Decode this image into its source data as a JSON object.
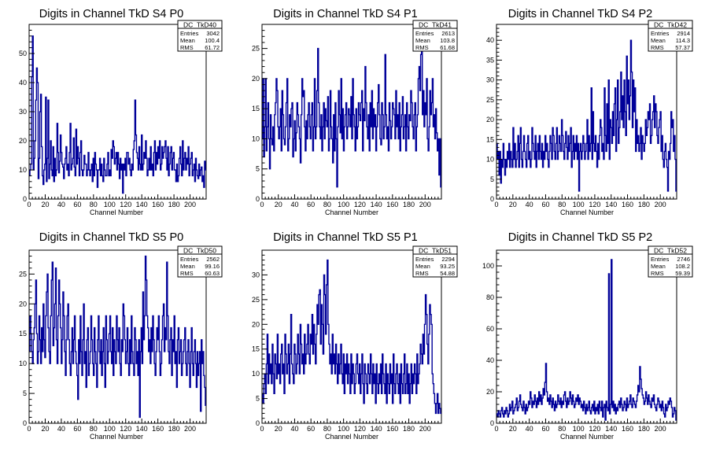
{
  "chart_data": [
    {
      "type": "histogram",
      "title": "Digits in Channel TkD S4 P0",
      "xlabel": "Channel Number",
      "ylabel": "",
      "xlim": [
        0,
        220
      ],
      "ylim": [
        0,
        60
      ],
      "xticks": [
        0,
        20,
        40,
        60,
        80,
        100,
        120,
        140,
        160,
        180,
        200
      ],
      "yticks": [
        0,
        10,
        20,
        30,
        40,
        50
      ],
      "grid": false,
      "line_color": "#000099",
      "stats": {
        "name": "DC_TkD40",
        "entries": "3042",
        "mean": "100.4",
        "rms": "61.72"
      },
      "values": [
        8,
        10,
        12,
        42,
        56,
        10,
        14,
        20,
        34,
        45,
        40,
        7,
        14,
        30,
        36,
        18,
        8,
        5,
        10,
        12,
        35,
        6,
        14,
        34,
        7,
        12,
        20,
        10,
        8,
        18,
        6,
        14,
        8,
        10,
        26,
        16,
        9,
        13,
        22,
        16,
        12,
        11,
        7,
        12,
        14,
        18,
        10,
        12,
        8,
        16,
        26,
        10,
        12,
        14,
        21,
        11,
        8,
        24,
        12,
        18,
        14,
        8,
        16,
        20,
        10,
        8,
        10,
        15,
        12,
        12,
        8,
        10,
        16,
        10,
        8,
        10,
        12,
        6,
        14,
        8,
        16,
        12,
        10,
        4,
        10,
        10,
        14,
        8,
        12,
        8,
        6,
        14,
        10,
        8,
        8,
        12,
        16,
        8,
        10,
        8,
        17,
        14,
        20,
        18,
        12,
        14,
        16,
        10,
        16,
        12,
        7,
        14,
        10,
        12,
        2,
        12,
        10,
        14,
        8,
        16,
        16,
        12,
        14,
        10,
        8,
        12,
        10,
        17,
        20,
        34,
        22,
        16,
        14,
        10,
        18,
        12,
        10,
        22,
        10,
        12,
        16,
        14,
        20,
        14,
        8,
        10,
        14,
        10,
        18,
        10,
        12,
        8,
        16,
        20,
        10,
        16,
        12,
        18,
        14,
        20,
        10,
        12,
        18,
        14,
        16,
        18,
        20,
        14,
        10,
        18,
        8,
        12,
        16,
        18,
        10,
        14,
        16,
        10,
        10,
        6,
        12,
        6,
        8,
        14,
        18,
        12,
        8,
        20,
        10,
        14,
        16,
        10,
        14,
        12,
        18,
        8,
        12,
        14,
        16,
        8,
        10,
        12,
        6,
        14,
        10,
        8,
        7,
        12,
        8,
        10,
        11,
        6,
        8,
        4,
        13,
        10
      ]
    },
    {
      "type": "histogram",
      "title": "Digits in Channel TkD S4 P1",
      "xlabel": "Channel Number",
      "ylabel": "",
      "xlim": [
        0,
        220
      ],
      "ylim": [
        0,
        29
      ],
      "xticks": [
        0,
        20,
        40,
        60,
        80,
        100,
        120,
        140,
        160,
        180,
        200
      ],
      "yticks": [
        0,
        5,
        10,
        15,
        20,
        25
      ],
      "grid": false,
      "line_color": "#000099",
      "stats": {
        "name": "DC_TkD41",
        "entries": "2613",
        "mean": "103.8",
        "rms": "61.68"
      },
      "values": [
        10,
        20,
        7,
        12,
        20,
        8,
        12,
        16,
        10,
        5,
        14,
        10,
        9,
        12,
        8,
        14,
        16,
        20,
        18,
        12,
        10,
        12,
        15,
        8,
        18,
        14,
        10,
        9,
        12,
        16,
        20,
        8,
        10,
        14,
        12,
        15,
        16,
        7,
        10,
        13,
        8,
        11,
        16,
        14,
        12,
        10,
        6,
        14,
        20,
        17,
        18,
        12,
        8,
        13,
        10,
        14,
        16,
        12,
        10,
        14,
        16,
        8,
        12,
        20,
        10,
        12,
        18,
        25,
        16,
        12,
        10,
        14,
        8,
        12,
        16,
        10,
        15,
        13,
        12,
        17,
        8,
        10,
        18,
        12,
        10,
        6,
        14,
        8,
        16,
        10,
        2,
        12,
        18,
        14,
        11,
        20,
        10,
        15,
        8,
        12,
        14,
        16,
        10,
        12,
        15,
        14,
        12,
        17,
        10,
        20,
        14,
        12,
        8,
        15,
        10,
        12,
        16,
        14,
        13,
        16,
        18,
        8,
        15,
        13,
        22,
        16,
        12,
        10,
        14,
        8,
        16,
        12,
        18,
        10,
        15,
        12,
        14,
        8,
        12,
        16,
        19,
        14,
        10,
        9,
        16,
        14,
        10,
        12,
        24,
        14,
        10,
        12,
        8,
        16,
        13,
        10,
        12,
        16,
        15,
        14,
        10,
        18,
        12,
        14,
        10,
        16,
        8,
        12,
        14,
        17,
        10,
        12,
        14,
        8,
        16,
        12,
        10,
        14,
        13,
        18,
        16,
        12,
        10,
        14,
        16,
        8,
        12,
        14,
        20,
        22,
        18,
        24,
        26,
        14,
        18,
        12,
        16,
        14,
        20,
        10,
        8,
        12,
        18,
        14,
        16,
        20,
        12,
        14,
        10,
        15,
        11,
        8,
        10,
        4,
        10,
        2
      ]
    },
    {
      "type": "histogram",
      "title": "Digits in Channel TkD S4 P2",
      "xlabel": "Channel Number",
      "ylabel": "",
      "xlim": [
        0,
        220
      ],
      "ylim": [
        0,
        44
      ],
      "xticks": [
        0,
        20,
        40,
        60,
        80,
        100,
        120,
        140,
        160,
        180,
        200
      ],
      "yticks": [
        0,
        5,
        10,
        15,
        20,
        25,
        30,
        35,
        40
      ],
      "grid": false,
      "line_color": "#000099",
      "stats": {
        "name": "DC_TkD42",
        "entries": "2914",
        "mean": "114.3",
        "rms": "57.37"
      },
      "values": [
        14,
        10,
        12,
        6,
        12,
        4,
        10,
        8,
        14,
        10,
        6,
        10,
        8,
        12,
        10,
        14,
        8,
        12,
        10,
        8,
        18,
        10,
        14,
        8,
        10,
        12,
        16,
        8,
        14,
        18,
        10,
        8,
        12,
        16,
        12,
        10,
        8,
        14,
        16,
        10,
        12,
        8,
        10,
        18,
        14,
        12,
        10,
        16,
        8,
        12,
        14,
        10,
        16,
        12,
        10,
        14,
        8,
        12,
        10,
        16,
        12,
        14,
        10,
        8,
        12,
        16,
        14,
        10,
        18,
        16,
        12,
        10,
        14,
        18,
        10,
        12,
        16,
        14,
        12,
        20,
        16,
        12,
        10,
        14,
        17,
        13,
        10,
        16,
        12,
        14,
        18,
        8,
        12,
        16,
        10,
        14,
        12,
        16,
        10,
        14,
        2,
        12,
        14,
        10,
        12,
        16,
        14,
        10,
        12,
        14,
        20,
        10,
        16,
        12,
        14,
        28,
        10,
        22,
        14,
        12,
        16,
        12,
        8,
        14,
        10,
        16,
        20,
        18,
        12,
        14,
        10,
        28,
        16,
        12,
        24,
        14,
        30,
        10,
        20,
        18,
        14,
        22,
        16,
        24,
        28,
        12,
        20,
        30,
        14,
        18,
        22,
        32,
        20,
        26,
        18,
        30,
        22,
        16,
        36,
        24,
        30,
        20,
        26,
        40,
        32,
        18,
        30,
        22,
        28,
        12,
        20,
        14,
        16,
        12,
        14,
        18,
        10,
        16,
        14,
        12,
        14,
        20,
        16,
        18,
        22,
        20,
        24,
        14,
        16,
        20,
        22,
        26,
        18,
        24,
        22,
        16,
        14,
        18,
        20,
        22,
        12,
        16,
        10,
        8,
        12,
        14,
        10,
        8,
        2,
        12,
        10,
        14,
        22,
        18,
        20,
        12,
        16,
        10,
        2
      ]
    },
    {
      "type": "histogram",
      "title": "Digits in Channel TkD S5 P0",
      "xlabel": "Channel Number",
      "ylabel": "",
      "xlim": [
        0,
        220
      ],
      "ylim": [
        0,
        29
      ],
      "xticks": [
        0,
        20,
        40,
        60,
        80,
        100,
        120,
        140,
        160,
        180,
        200
      ],
      "yticks": [
        0,
        5,
        10,
        15,
        20,
        25
      ],
      "grid": false,
      "line_color": "#000099",
      "stats": {
        "name": "DC_TkD50",
        "entries": "2562",
        "mean": "99.16",
        "rms": "60.63"
      },
      "values": [
        12,
        18,
        15,
        12,
        10,
        14,
        16,
        20,
        24,
        15,
        10,
        12,
        18,
        14,
        10,
        16,
        12,
        20,
        14,
        11,
        18,
        22,
        25,
        16,
        12,
        10,
        18,
        24,
        27,
        13,
        16,
        20,
        26,
        14,
        10,
        18,
        24,
        20,
        16,
        10,
        14,
        22,
        18,
        12,
        8,
        14,
        18,
        20,
        14,
        10,
        8,
        12,
        16,
        10,
        14,
        18,
        12,
        10,
        8,
        4,
        14,
        10,
        18,
        12,
        8,
        14,
        20,
        10,
        12,
        6,
        14,
        16,
        8,
        10,
        12,
        18,
        14,
        10,
        8,
        16,
        12,
        10,
        6,
        14,
        18,
        12,
        10,
        14,
        8,
        12,
        16,
        10,
        6,
        18,
        14,
        10,
        12,
        15,
        18,
        12,
        10,
        16,
        8,
        14,
        12,
        10,
        18,
        14,
        12,
        16,
        10,
        8,
        14,
        12,
        20,
        18,
        14,
        10,
        12,
        16,
        10,
        8,
        14,
        10,
        18,
        12,
        10,
        8,
        16,
        14,
        10,
        12,
        8,
        14,
        1,
        12,
        16,
        10,
        22,
        14,
        18,
        28,
        24,
        18,
        16,
        12,
        14,
        10,
        16,
        12,
        18,
        14,
        10,
        8,
        12,
        16,
        14,
        18,
        12,
        8,
        10,
        14,
        18,
        20,
        12,
        16,
        14,
        27,
        18,
        12,
        10,
        14,
        16,
        8,
        14,
        12,
        18,
        10,
        12,
        6,
        14,
        16,
        10,
        12,
        14,
        8,
        10,
        12,
        14,
        16,
        10,
        8,
        12,
        14,
        10,
        6,
        12,
        16,
        10,
        8,
        12,
        14,
        10,
        6,
        12,
        8,
        10,
        12,
        2,
        14,
        10,
        12,
        8,
        6,
        3
      ]
    },
    {
      "type": "histogram",
      "title": "Digits in Channel TkD S5 P1",
      "xlabel": "Channel Number",
      "ylabel": "",
      "xlim": [
        0,
        220
      ],
      "ylim": [
        0,
        35
      ],
      "xticks": [
        0,
        20,
        40,
        60,
        80,
        100,
        120,
        140,
        160,
        180,
        200
      ],
      "yticks": [
        0,
        5,
        10,
        15,
        20,
        25,
        30
      ],
      "grid": false,
      "line_color": "#000099",
      "stats": {
        "name": "DC_TkD51",
        "entries": "2294",
        "mean": "93.25",
        "rms": "54.88"
      },
      "values": [
        6,
        4,
        8,
        10,
        6,
        12,
        18,
        8,
        14,
        10,
        12,
        8,
        16,
        10,
        6,
        14,
        12,
        9,
        18,
        10,
        12,
        8,
        14,
        16,
        10,
        12,
        6,
        18,
        14,
        10,
        12,
        16,
        8,
        14,
        22,
        12,
        10,
        8,
        16,
        14,
        10,
        12,
        18,
        14,
        10,
        20,
        16,
        12,
        14,
        10,
        18,
        12,
        14,
        16,
        20,
        14,
        12,
        18,
        16,
        22,
        14,
        20,
        16,
        12,
        18,
        24,
        20,
        26,
        27,
        16,
        24,
        20,
        14,
        30,
        26,
        18,
        28,
        33,
        20,
        16,
        12,
        14,
        10,
        18,
        12,
        14,
        10,
        16,
        12,
        8,
        14,
        10,
        12,
        16,
        10,
        8,
        14,
        6,
        12,
        10,
        14,
        8,
        12,
        10,
        6,
        14,
        8,
        12,
        10,
        6,
        8,
        12,
        14,
        10,
        8,
        12,
        6,
        10,
        14,
        8,
        4,
        12,
        10,
        8,
        6,
        12,
        10,
        8,
        14,
        10,
        6,
        12,
        8,
        10,
        4,
        12,
        8,
        6,
        10,
        8,
        12,
        6,
        14,
        10,
        8,
        6,
        12,
        4,
        10,
        8,
        6,
        12,
        8,
        10,
        4,
        14,
        8,
        6,
        10,
        12,
        8,
        6,
        10,
        4,
        12,
        8,
        6,
        10,
        14,
        6,
        8,
        12,
        6,
        10,
        4,
        8,
        12,
        6,
        10,
        8,
        12,
        10,
        6,
        14,
        8,
        10,
        12,
        16,
        14,
        12,
        18,
        14,
        20,
        26,
        22,
        16,
        12,
        18,
        24,
        22,
        20,
        10,
        8,
        6,
        4,
        2,
        4,
        6,
        2,
        4,
        3,
        2
      ]
    },
    {
      "type": "histogram",
      "title": "Digits in Channel TkD S5 P2",
      "xlabel": "Channel Number",
      "ylabel": "",
      "xlim": [
        0,
        220
      ],
      "ylim": [
        0,
        110
      ],
      "xticks": [
        0,
        20,
        40,
        60,
        80,
        100,
        120,
        140,
        160,
        180,
        200
      ],
      "yticks": [
        0,
        20,
        40,
        60,
        80,
        100
      ],
      "grid": false,
      "line_color": "#000099",
      "stats": {
        "name": "DC_TkD52",
        "entries": "2746",
        "mean": "108.2",
        "rms": "59.39"
      },
      "values": [
        6,
        4,
        8,
        6,
        4,
        8,
        10,
        6,
        4,
        8,
        6,
        10,
        8,
        4,
        6,
        12,
        8,
        10,
        14,
        6,
        8,
        10,
        12,
        16,
        8,
        10,
        14,
        18,
        12,
        10,
        8,
        14,
        10,
        6,
        12,
        8,
        10,
        14,
        12,
        20,
        16,
        10,
        14,
        12,
        18,
        14,
        10,
        16,
        12,
        20,
        14,
        18,
        12,
        16,
        22,
        18,
        26,
        38,
        20,
        14,
        16,
        12,
        18,
        14,
        10,
        16,
        12,
        8,
        14,
        10,
        12,
        18,
        14,
        12,
        16,
        10,
        14,
        12,
        18,
        20,
        14,
        10,
        16,
        12,
        14,
        20,
        16,
        12,
        18,
        14,
        10,
        12,
        16,
        14,
        18,
        12,
        16,
        14,
        10,
        12,
        8,
        14,
        10,
        6,
        12,
        8,
        10,
        14,
        8,
        6,
        10,
        12,
        8,
        14,
        6,
        10,
        8,
        12,
        6,
        14,
        10,
        8,
        14,
        4,
        10,
        12,
        2,
        14,
        10,
        8,
        95,
        6,
        12,
        104,
        10,
        14,
        8,
        12,
        6,
        10,
        8,
        12,
        14,
        10,
        16,
        12,
        8,
        10,
        14,
        12,
        8,
        16,
        10,
        12,
        14,
        18,
        12,
        10,
        16,
        14,
        12,
        10,
        14,
        18,
        24,
        20,
        36,
        28,
        22,
        18,
        16,
        12,
        14,
        20,
        16,
        12,
        18,
        14,
        12,
        10,
        16,
        14,
        18,
        12,
        10,
        8,
        12,
        16,
        14,
        10,
        12,
        8,
        14,
        10,
        6,
        4,
        12,
        8,
        10,
        14,
        12,
        16,
        14,
        10,
        4,
        6,
        10,
        8,
        2
      ]
    }
  ]
}
